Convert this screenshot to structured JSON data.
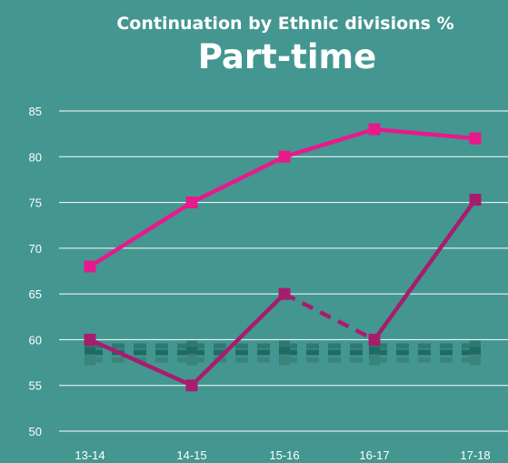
{
  "chart_data": {
    "type": "line",
    "title": "Part-time",
    "subtitle": "Continuation by Ethnic divisions  %",
    "categories": [
      "13-14",
      "14-15",
      "15-16",
      "16-17",
      "17-18"
    ],
    "ylim": [
      50,
      85
    ],
    "yticks": [
      "85",
      "80",
      "75",
      "70",
      "65",
      "60",
      "55",
      "50"
    ],
    "grid": true,
    "series": [
      {
        "values": [
          68,
          75,
          80,
          83,
          82
        ],
        "color": "#e8198b",
        "style": "solid",
        "marker": "square"
      },
      {
        "values": [
          60,
          55,
          65,
          60,
          75.3
        ],
        "color": "#a81c6e",
        "style": "solid-dashed-segment",
        "dashed_segment": [
          2,
          3
        ],
        "marker": "square"
      },
      {
        "values": [
          59.3,
          59.3,
          59.3,
          59.3,
          59.3
        ],
        "color": "#2e7a72",
        "style": "dashed",
        "marker": "square"
      },
      {
        "values": [
          58.6,
          58.6,
          58.6,
          58.6,
          58.6
        ],
        "color": "#1f6b63",
        "style": "dashed",
        "marker": "square"
      },
      {
        "values": [
          57.8,
          57.8,
          57.8,
          57.8,
          57.8
        ],
        "color": "#3b847c",
        "style": "dashed",
        "marker": "square"
      }
    ]
  }
}
